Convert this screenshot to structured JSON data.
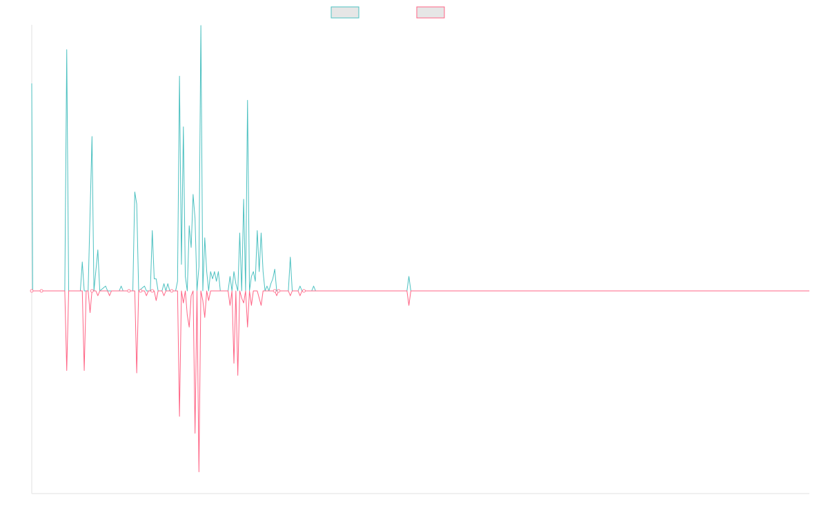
{
  "chart_data": {
    "type": "line",
    "title": "",
    "xlabel": "",
    "ylabel": "",
    "grid": false,
    "legend_position": "top-center",
    "ylim": [
      -1,
      1
    ],
    "colors": {
      "series_a": "#4bc0c0",
      "series_b": "#ff6384",
      "axis": "#e0e0e0",
      "legend_fill": "#e6e6e6"
    },
    "series": [
      {
        "key": "series_a",
        "points": [
          [
            0,
            0.86
          ],
          [
            0.5,
            0
          ],
          [
            8,
            0
          ],
          [
            17,
            0
          ],
          [
            18,
            1
          ],
          [
            19,
            0
          ],
          [
            25,
            0
          ],
          [
            26,
            0.12
          ],
          [
            27,
            0
          ],
          [
            29,
            0
          ],
          [
            31,
            0.64
          ],
          [
            32,
            0
          ],
          [
            34,
            0.17
          ],
          [
            35,
            0
          ],
          [
            38,
            0.02
          ],
          [
            39,
            0
          ],
          [
            45,
            0
          ],
          [
            46,
            0.02
          ],
          [
            47,
            0
          ],
          [
            52,
            0
          ],
          [
            53,
            0.41
          ],
          [
            54,
            0.36
          ],
          [
            55,
            0
          ],
          [
            58,
            0.02
          ],
          [
            59,
            0
          ],
          [
            61,
            0
          ],
          [
            62,
            0.25
          ],
          [
            63,
            0.05
          ],
          [
            64,
            0.05
          ],
          [
            65,
            0
          ],
          [
            67,
            0
          ],
          [
            68,
            0.03
          ],
          [
            69,
            0
          ],
          [
            70,
            0.03
          ],
          [
            71,
            0
          ],
          [
            74,
            0
          ],
          [
            75,
            0.04
          ],
          [
            76,
            0.89
          ],
          [
            77,
            0.11
          ],
          [
            78,
            0.68
          ],
          [
            79,
            0.06
          ],
          [
            80,
            0
          ],
          [
            81,
            0.27
          ],
          [
            82,
            0.18
          ],
          [
            83,
            0.4
          ],
          [
            84,
            0.3
          ],
          [
            85,
            0
          ],
          [
            86,
            0.1
          ],
          [
            87,
            1.1
          ],
          [
            88,
            0
          ],
          [
            89,
            0.22
          ],
          [
            90,
            0.08
          ],
          [
            91,
            0
          ],
          [
            92,
            0.08
          ],
          [
            93,
            0.05
          ],
          [
            94,
            0.08
          ],
          [
            95,
            0.04
          ],
          [
            96,
            0.08
          ],
          [
            97,
            0
          ],
          [
            98,
            0
          ],
          [
            99,
            0
          ],
          [
            100,
            0
          ],
          [
            101,
            0
          ],
          [
            102,
            0.06
          ],
          [
            103,
            0
          ],
          [
            104,
            0.08
          ],
          [
            105,
            0.03
          ],
          [
            106,
            0
          ],
          [
            107,
            0.24
          ],
          [
            108,
            0
          ],
          [
            109,
            0.38
          ],
          [
            110,
            0
          ],
          [
            111,
            0.79
          ],
          [
            112,
            0
          ],
          [
            113,
            0.06
          ],
          [
            114,
            0.08
          ],
          [
            115,
            0.04
          ],
          [
            116,
            0.25
          ],
          [
            117,
            0.08
          ],
          [
            118,
            0.24
          ],
          [
            119,
            0.08
          ],
          [
            120,
            0
          ],
          [
            121,
            0.02
          ],
          [
            122,
            0
          ],
          [
            123,
            0.03
          ],
          [
            124,
            0.05
          ],
          [
            125,
            0.09
          ],
          [
            126,
            0
          ],
          [
            127,
            0
          ],
          [
            128,
            0
          ],
          [
            129,
            0
          ],
          [
            130,
            0
          ],
          [
            131,
            0
          ],
          [
            132,
            0
          ],
          [
            133,
            0.14
          ],
          [
            134,
            0
          ],
          [
            137,
            0
          ],
          [
            138,
            0.02
          ],
          [
            139,
            0
          ],
          [
            144,
            0
          ],
          [
            145,
            0.02
          ],
          [
            146,
            0
          ],
          [
            193,
            0
          ],
          [
            194,
            0.06
          ],
          [
            195,
            0
          ],
          [
            400,
            0
          ]
        ]
      },
      {
        "key": "series_b",
        "points": [
          [
            0,
            0
          ],
          [
            17,
            0
          ],
          [
            18,
            -0.33
          ],
          [
            19,
            0
          ],
          [
            26,
            0
          ],
          [
            27,
            -0.33
          ],
          [
            28,
            0
          ],
          [
            29,
            0
          ],
          [
            30,
            -0.09
          ],
          [
            31,
            0
          ],
          [
            33,
            0
          ],
          [
            34,
            -0.02
          ],
          [
            35,
            0
          ],
          [
            39,
            0
          ],
          [
            40,
            -0.02
          ],
          [
            41,
            0
          ],
          [
            52,
            0
          ],
          [
            53,
            0
          ],
          [
            54,
            -0.34
          ],
          [
            55,
            0
          ],
          [
            58,
            0
          ],
          [
            59,
            -0.02
          ],
          [
            60,
            0
          ],
          [
            63,
            0
          ],
          [
            64,
            -0.04
          ],
          [
            65,
            0
          ],
          [
            67,
            0
          ],
          [
            68,
            -0.02
          ],
          [
            69,
            0
          ],
          [
            75,
            0
          ],
          [
            76,
            -0.52
          ],
          [
            77,
            0
          ],
          [
            78,
            -0.05
          ],
          [
            79,
            0
          ],
          [
            80,
            -0.1
          ],
          [
            81,
            -0.15
          ],
          [
            82,
            -0.02
          ],
          [
            83,
            0
          ],
          [
            84,
            -0.59
          ],
          [
            85,
            0
          ],
          [
            86,
            -0.75
          ],
          [
            87,
            0
          ],
          [
            88,
            -0.04
          ],
          [
            89,
            -0.11
          ],
          [
            90,
            0
          ],
          [
            91,
            -0.04
          ],
          [
            92,
            0
          ],
          [
            101,
            0
          ],
          [
            102,
            -0.06
          ],
          [
            103,
            0
          ],
          [
            104,
            -0.3
          ],
          [
            105,
            0
          ],
          [
            106,
            -0.35
          ],
          [
            107,
            0
          ],
          [
            108,
            -0.03
          ],
          [
            109,
            -0.05
          ],
          [
            110,
            0
          ],
          [
            111,
            -0.15
          ],
          [
            112,
            0
          ],
          [
            113,
            -0.06
          ],
          [
            114,
            0
          ],
          [
            116,
            0
          ],
          [
            117,
            -0.03
          ],
          [
            118,
            -0.06
          ],
          [
            119,
            0
          ],
          [
            125,
            0
          ],
          [
            126,
            -0.02
          ],
          [
            127,
            0
          ],
          [
            132,
            0
          ],
          [
            133,
            -0.02
          ],
          [
            134,
            0
          ],
          [
            137,
            0
          ],
          [
            138,
            -0.02
          ],
          [
            139,
            0
          ],
          [
            193,
            0
          ],
          [
            194,
            -0.06
          ],
          [
            195,
            0
          ],
          [
            400,
            0
          ]
        ]
      }
    ],
    "zero_markers_x": [
      0,
      5,
      31,
      50,
      56,
      62,
      72,
      125,
      127,
      140
    ],
    "xlim": [
      0,
      400
    ]
  }
}
